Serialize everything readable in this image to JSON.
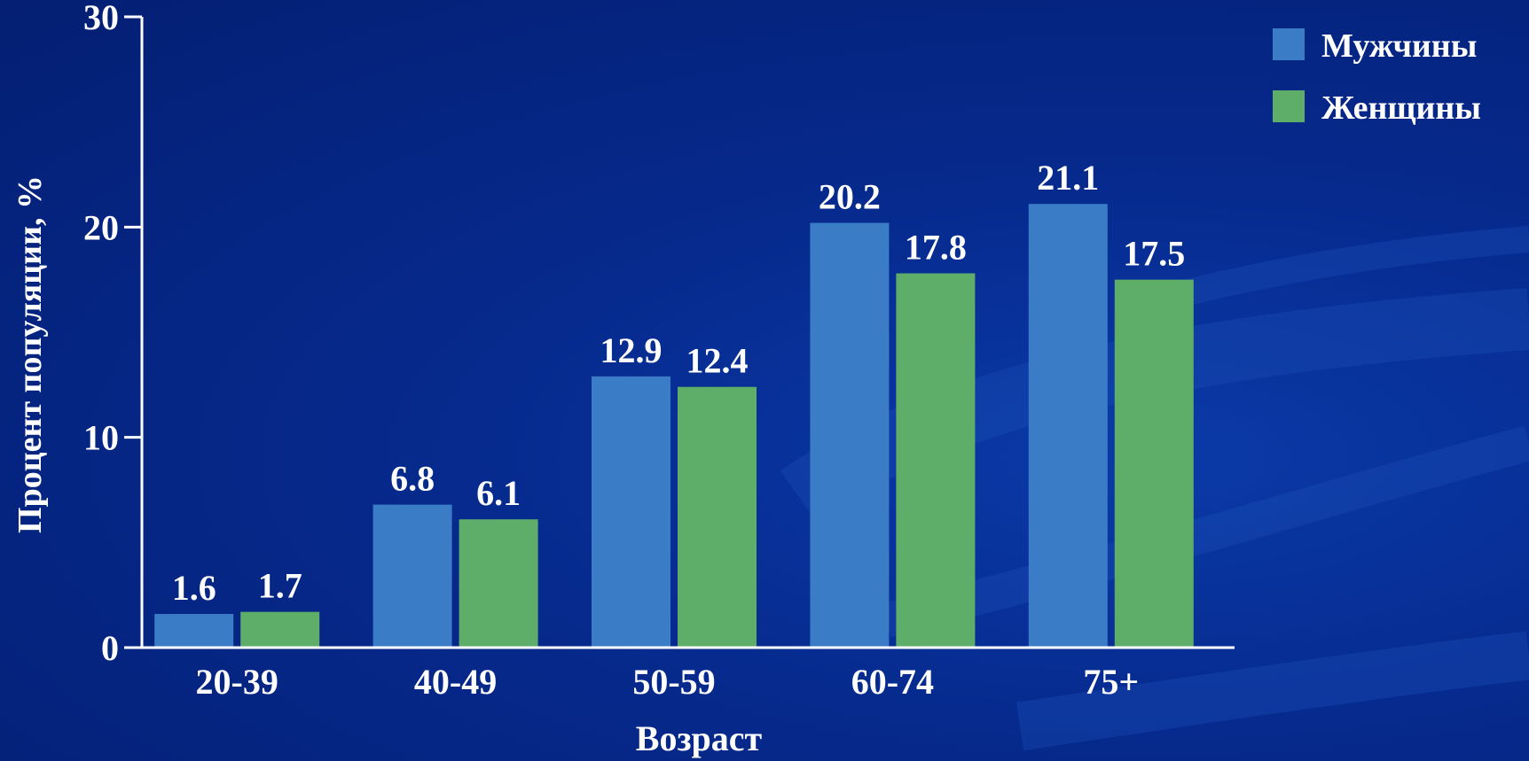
{
  "chart_data": {
    "type": "bar",
    "title": "",
    "xlabel": "Возраст",
    "ylabel": "Процент популяции, %",
    "categories": [
      "20-39",
      "40-49",
      "50-59",
      "60-74",
      "75+"
    ],
    "series": [
      {
        "name": "Мужчины",
        "color": "#3a7cc6",
        "values": [
          1.6,
          6.8,
          12.9,
          20.2,
          21.1
        ],
        "labels": [
          "1.6",
          "6.8",
          "12.9",
          "20.2",
          "21.1"
        ]
      },
      {
        "name": "Женщины",
        "color": "#5eae6a",
        "values": [
          1.7,
          6.1,
          12.4,
          17.8,
          17.5
        ],
        "labels": [
          "1.7",
          "6.1",
          "12.4",
          "17.8",
          "17.5"
        ]
      }
    ],
    "ylim": [
      0,
      30
    ],
    "yticks": [
      0,
      10,
      20,
      30
    ],
    "grid": false,
    "legend": "top-right",
    "data_labels": true
  }
}
